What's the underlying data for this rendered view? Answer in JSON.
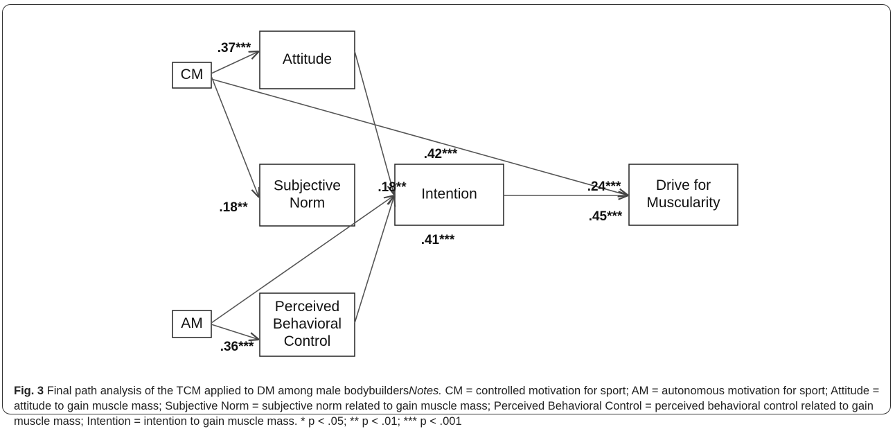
{
  "nodes": [
    {
      "label": [
        "CM"
      ]
    },
    {
      "label": [
        "Attitude"
      ]
    },
    {
      "label": [
        "Subjective",
        "Norm"
      ]
    },
    {
      "label": [
        "Intention"
      ]
    },
    {
      "label": [
        "Drive for",
        "Muscularity"
      ]
    },
    {
      "label": [
        "AM"
      ]
    },
    {
      "label": [
        "Perceived",
        "Behavioral",
        "Control"
      ]
    }
  ],
  "edges": [
    {
      "from": "CM",
      "to": "Attitude",
      "label": ".37***"
    },
    {
      "from": "CM",
      "to": "Subjective Norm",
      "label": ".18**"
    },
    {
      "from": "CM",
      "to": "Drive for Muscularity",
      "label": ".24***"
    },
    {
      "from": "Attitude",
      "to": "Intention",
      "label": ".42***"
    },
    {
      "from": "AM",
      "to": "Intention",
      "label": ".18**"
    },
    {
      "from": "Perceived Behavioral Control",
      "to": "Intention",
      "label": ".41***"
    },
    {
      "from": "Intention",
      "to": "Drive for Muscularity",
      "label": ".45***"
    },
    {
      "from": "AM",
      "to": "Perceived Behavioral Control",
      "label": ".36***"
    }
  ],
  "caption": {
    "label": "Fig. 3",
    "title": "Final path analysis of the TCM applied to DM among male bodybuilders",
    "notes_label": "Notes.",
    "notes": "CM = controlled motivation for sport; AM = autonomous motivation for sport; Attitude = attitude to gain muscle mass; Subjective Norm = subjective norm related to gain muscle mass; Perceived Behavioral Control = perceived behavioral control related to gain muscle mass; Intention = intention to gain muscle mass. * p < .05; ** p < .01; *** p < .001"
  }
}
